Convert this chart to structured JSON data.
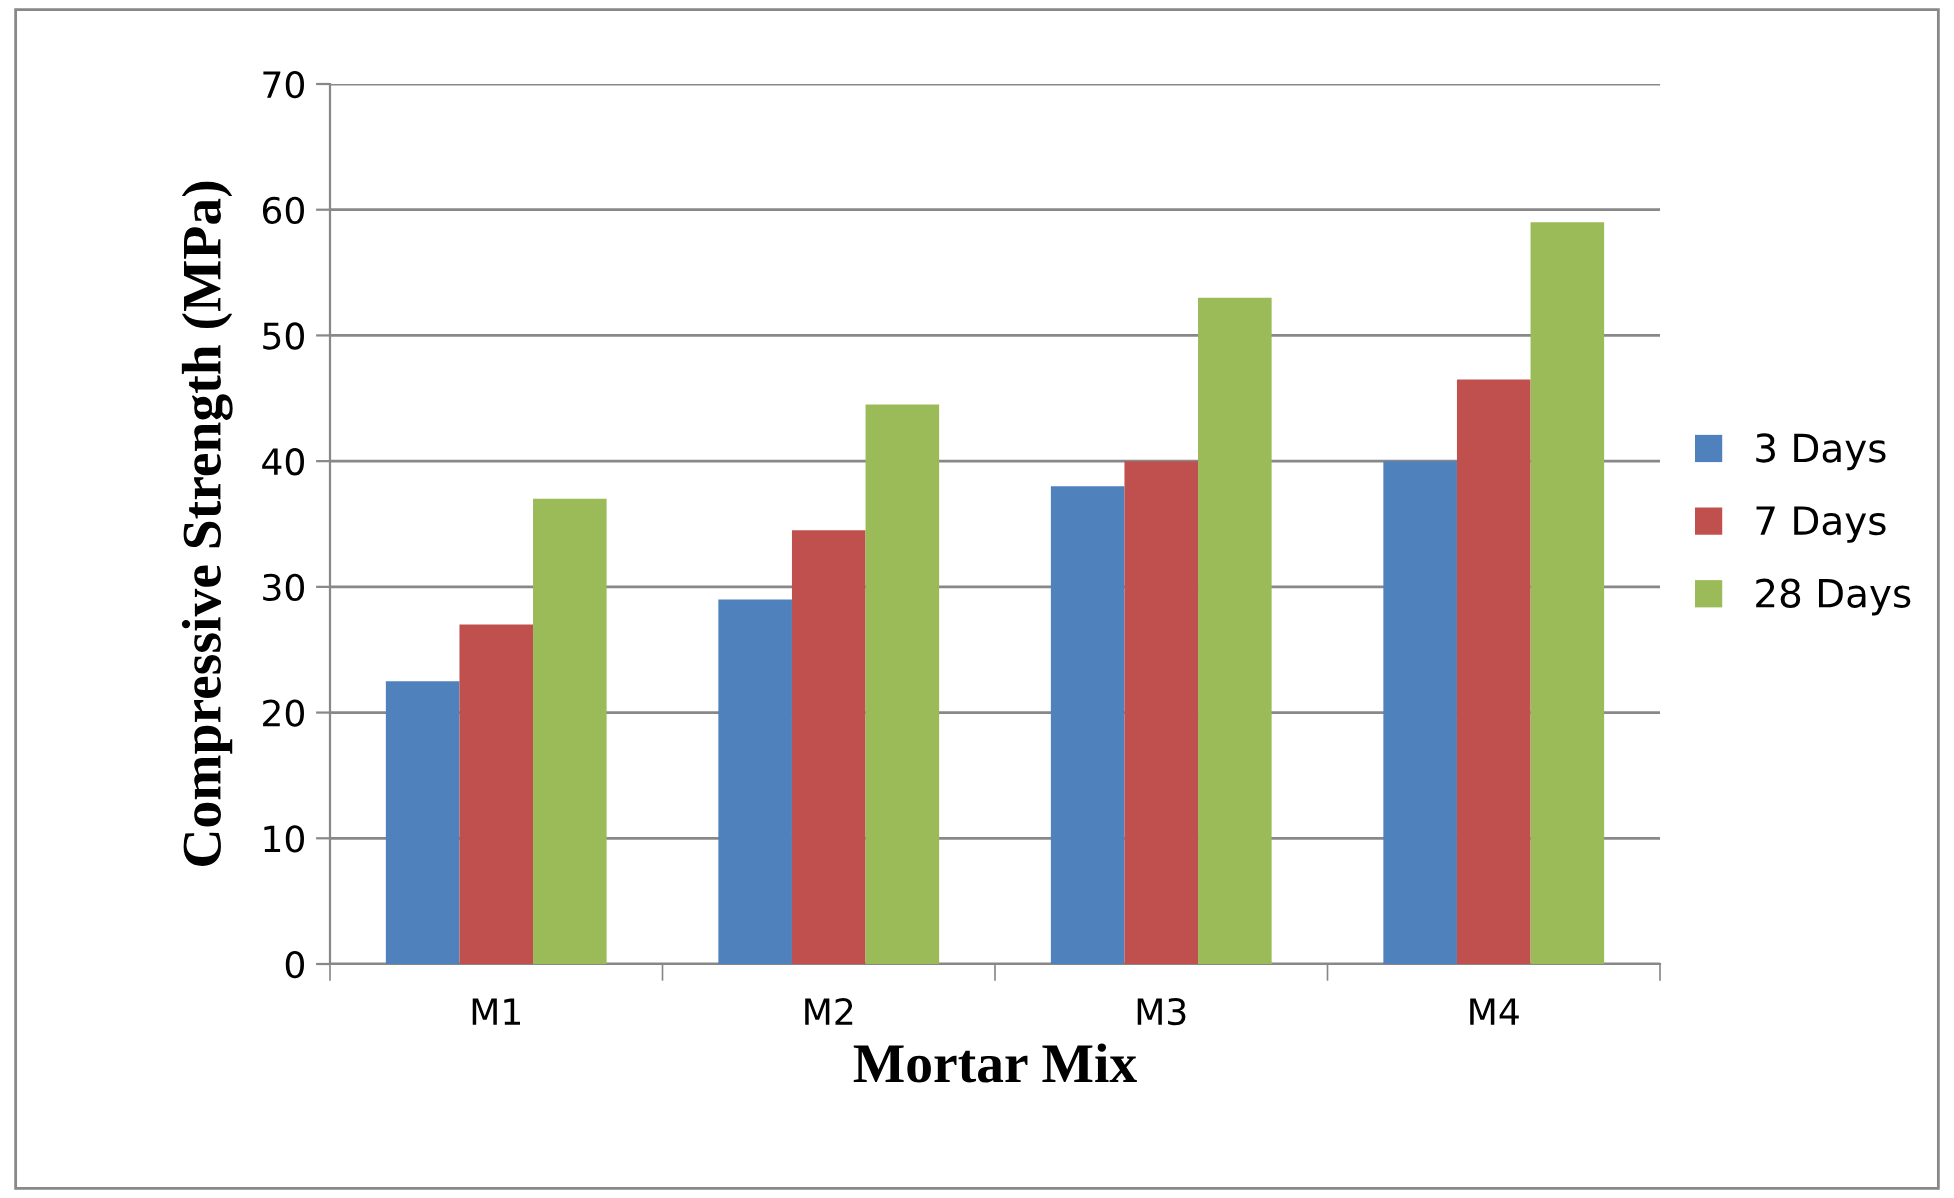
{
  "chart_data": {
    "type": "bar",
    "xlabel": "Mortar Mix",
    "ylabel": "Compressive Strength (MPa)",
    "categories": [
      "M1",
      "M2",
      "M3",
      "M4"
    ],
    "series": [
      {
        "name": "3 Days",
        "color": "#4f81bd",
        "values": [
          22.5,
          29,
          38,
          40
        ]
      },
      {
        "name": "7 Days",
        "color": "#c0504d",
        "values": [
          27,
          34.5,
          40,
          46.5
        ]
      },
      {
        "name": "28 Days",
        "color": "#9bbb59",
        "values": [
          37,
          44.5,
          53,
          59
        ]
      }
    ],
    "ylim": [
      0,
      70
    ],
    "yticks": [
      0,
      10,
      20,
      30,
      40,
      50,
      60,
      70
    ],
    "grid": "y",
    "legend": "right"
  }
}
